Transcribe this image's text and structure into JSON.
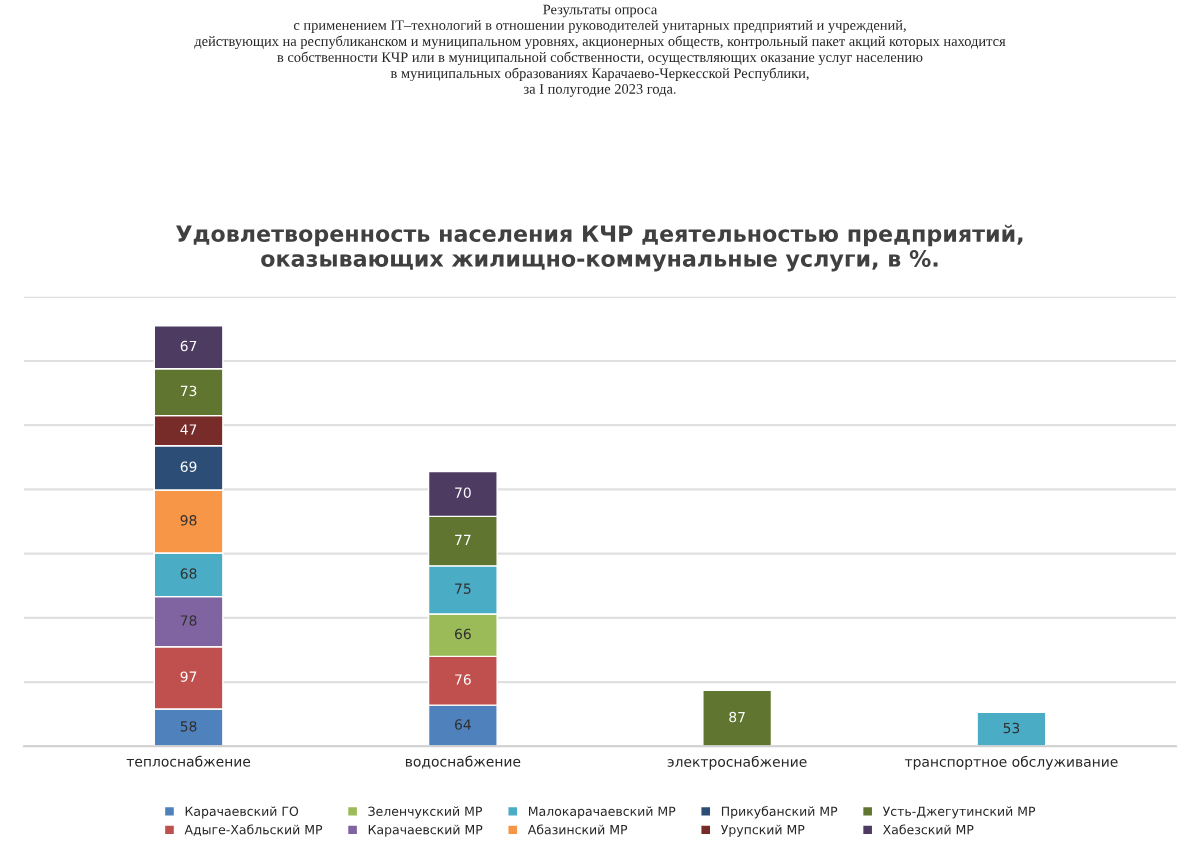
{
  "chart_data": {
    "type": "bar",
    "stacked": true,
    "title": "Результаты опроса\nс применением IT–технологий в отношении руководителей унитарных предприятий и учреждений,\nдействующих на республиканском и муниципальном уровнях, акционерных обществ, контрольный пакет акций которых находится\nв собственности КЧР или в муниципальной собственности, осуществляющих оказание услуг населению\nв муниципальных образованиях Карачаево-Черкесской Республики,\nза I полугодие 2023 года.",
    "subtitle": "Удовлетворенность населения КЧР деятельностью предприятий,\nоказывающих жилищно-коммунальные услуги, в %.",
    "categories": [
      "теплоснабжение",
      "водоснабжение",
      "электроснабжение",
      "транспортное обслуживание"
    ],
    "series": [
      {
        "name": "Карачаевский ГО",
        "color": "#4f81bd",
        "values": [
          58,
          64,
          null,
          null
        ]
      },
      {
        "name": "Адыге-Хабльский МР",
        "color": "#c0504d",
        "values": [
          97,
          76,
          null,
          null
        ]
      },
      {
        "name": "Зеленчукский МР",
        "color": "#9bbb59",
        "values": [
          null,
          66,
          null,
          null
        ]
      },
      {
        "name": "Карачаевский МР",
        "color": "#8064a2",
        "values": [
          78,
          null,
          null,
          null
        ]
      },
      {
        "name": "Малокарачаевский МР",
        "color": "#4bacc6",
        "values": [
          68,
          75,
          null,
          53
        ]
      },
      {
        "name": "Абазинский МР",
        "color": "#f79646",
        "values": [
          98,
          null,
          null,
          null
        ]
      },
      {
        "name": "Прикубанский МР",
        "color": "#2c4d75",
        "values": [
          69,
          null,
          null,
          null
        ]
      },
      {
        "name": "Урупский МР",
        "color": "#772c2a",
        "values": [
          47,
          null,
          null,
          null
        ]
      },
      {
        "name": "Усть-Джегутинский МР",
        "color": "#5f7530",
        "values": [
          73,
          77,
          87,
          null
        ]
      },
      {
        "name": "Хабезский МР",
        "color": "#4d3b62",
        "values": [
          67,
          70,
          null,
          null
        ]
      }
    ],
    "data_labels": true,
    "ylim": [
      0,
      700
    ],
    "yticks": [
      {
        "value": 0,
        "label": null
      },
      {
        "value": 100,
        "label": null
      },
      {
        "value": 200,
        "label": null
      },
      {
        "value": 300,
        "label": null
      },
      {
        "value": 400,
        "label": null
      },
      {
        "value": 500,
        "label": null
      },
      {
        "value": 600,
        "label": null
      },
      {
        "value": 700,
        "label": null
      }
    ],
    "grid": "y",
    "legend": "bottom"
  }
}
